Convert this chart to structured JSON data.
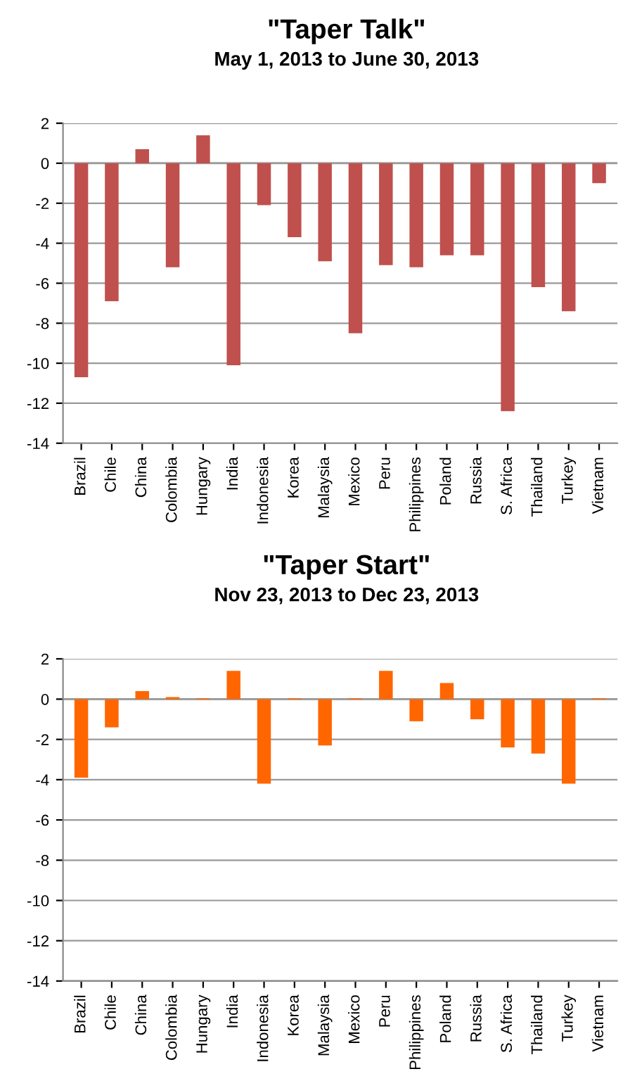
{
  "chart_data": [
    {
      "type": "bar",
      "title": "\"Taper Talk\"",
      "subtitle": "May 1, 2013 to June 30, 2013",
      "categories": [
        "Brazil",
        "Chile",
        "China",
        "Colombia",
        "Hungary",
        "India",
        "Indonesia",
        "Korea",
        "Malaysia",
        "Mexico",
        "Peru",
        "Philippines",
        "Poland",
        "Russia",
        "S. Africa",
        "Thailand",
        "Turkey",
        "Vietnam"
      ],
      "values": [
        -10.7,
        -6.9,
        0.7,
        -5.2,
        1.4,
        -10.1,
        -2.1,
        -3.7,
        -4.9,
        -8.5,
        -5.1,
        -5.2,
        -4.6,
        -4.6,
        -12.4,
        -6.2,
        -7.4,
        -1.0
      ],
      "color": "#c0504d",
      "ylim": [
        -14,
        2
      ],
      "yticks": [
        -14,
        -12,
        -10,
        -8,
        -6,
        -4,
        -2,
        0,
        2
      ],
      "grid": "y"
    },
    {
      "type": "bar",
      "title": "\"Taper Start\"",
      "subtitle": "Nov 23, 2013 to Dec 23, 2013",
      "categories": [
        "Brazil",
        "Chile",
        "China",
        "Colombia",
        "Hungary",
        "India",
        "Indonesia",
        "Korea",
        "Malaysia",
        "Mexico",
        "Peru",
        "Philippines",
        "Poland",
        "Russia",
        "S. Africa",
        "Thailand",
        "Turkey",
        "Vietnam"
      ],
      "values": [
        -3.9,
        -1.4,
        0.4,
        0.1,
        0.05,
        1.4,
        -4.2,
        0.05,
        -2.3,
        0.05,
        1.4,
        -1.1,
        0.8,
        -1.0,
        -2.4,
        -2.7,
        -4.2,
        0.05
      ],
      "color": "#ff6600",
      "ylim": [
        -14,
        2
      ],
      "yticks": [
        -14,
        -12,
        -10,
        -8,
        -6,
        -4,
        -2,
        0,
        2
      ],
      "grid": "y"
    }
  ]
}
